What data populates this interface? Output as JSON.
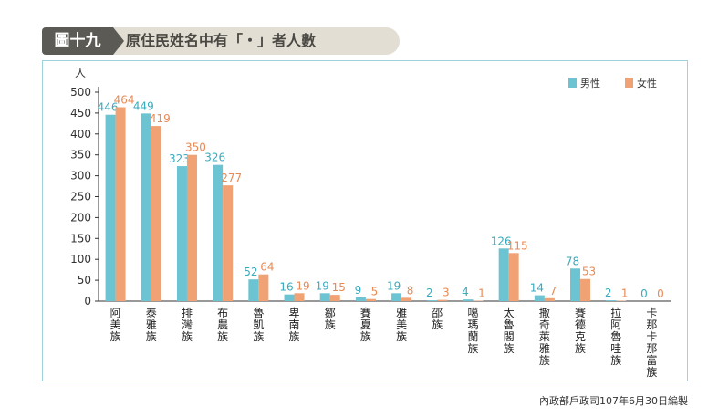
{
  "header": {
    "figure_number": "圖十九",
    "title": "原住民姓名中有「・」者人數"
  },
  "source": "內政部戶政司107年6月30日編製",
  "colors": {
    "male": "#6cc3d1",
    "female": "#f0a275"
  },
  "chart_data": {
    "type": "bar",
    "title": "原住民姓名中有「・」者人數",
    "ylabel": "人",
    "xlabel": "",
    "ylim": [
      0,
      500
    ],
    "yticks": [
      0,
      50,
      100,
      150,
      200,
      250,
      300,
      350,
      400,
      450,
      500
    ],
    "grid": false,
    "legend_position": "top-right",
    "categories": [
      "阿美族",
      "泰雅族",
      "排灣族",
      "布農族",
      "魯凱族",
      "卑南族",
      "鄒族",
      "賽夏族",
      "雅美族",
      "邵族",
      "噶瑪蘭族",
      "太魯閣族",
      "撒奇萊雅族",
      "賽德克族",
      "拉阿魯哇族",
      "卡那卡那富族"
    ],
    "series": [
      {
        "name": "男性",
        "values": [
          446,
          449,
          323,
          326,
          52,
          16,
          19,
          9,
          19,
          2,
          4,
          126,
          14,
          78,
          2,
          0
        ]
      },
      {
        "name": "女性",
        "values": [
          464,
          419,
          350,
          277,
          64,
          19,
          15,
          5,
          8,
          3,
          1,
          115,
          7,
          53,
          1,
          0
        ]
      }
    ]
  }
}
